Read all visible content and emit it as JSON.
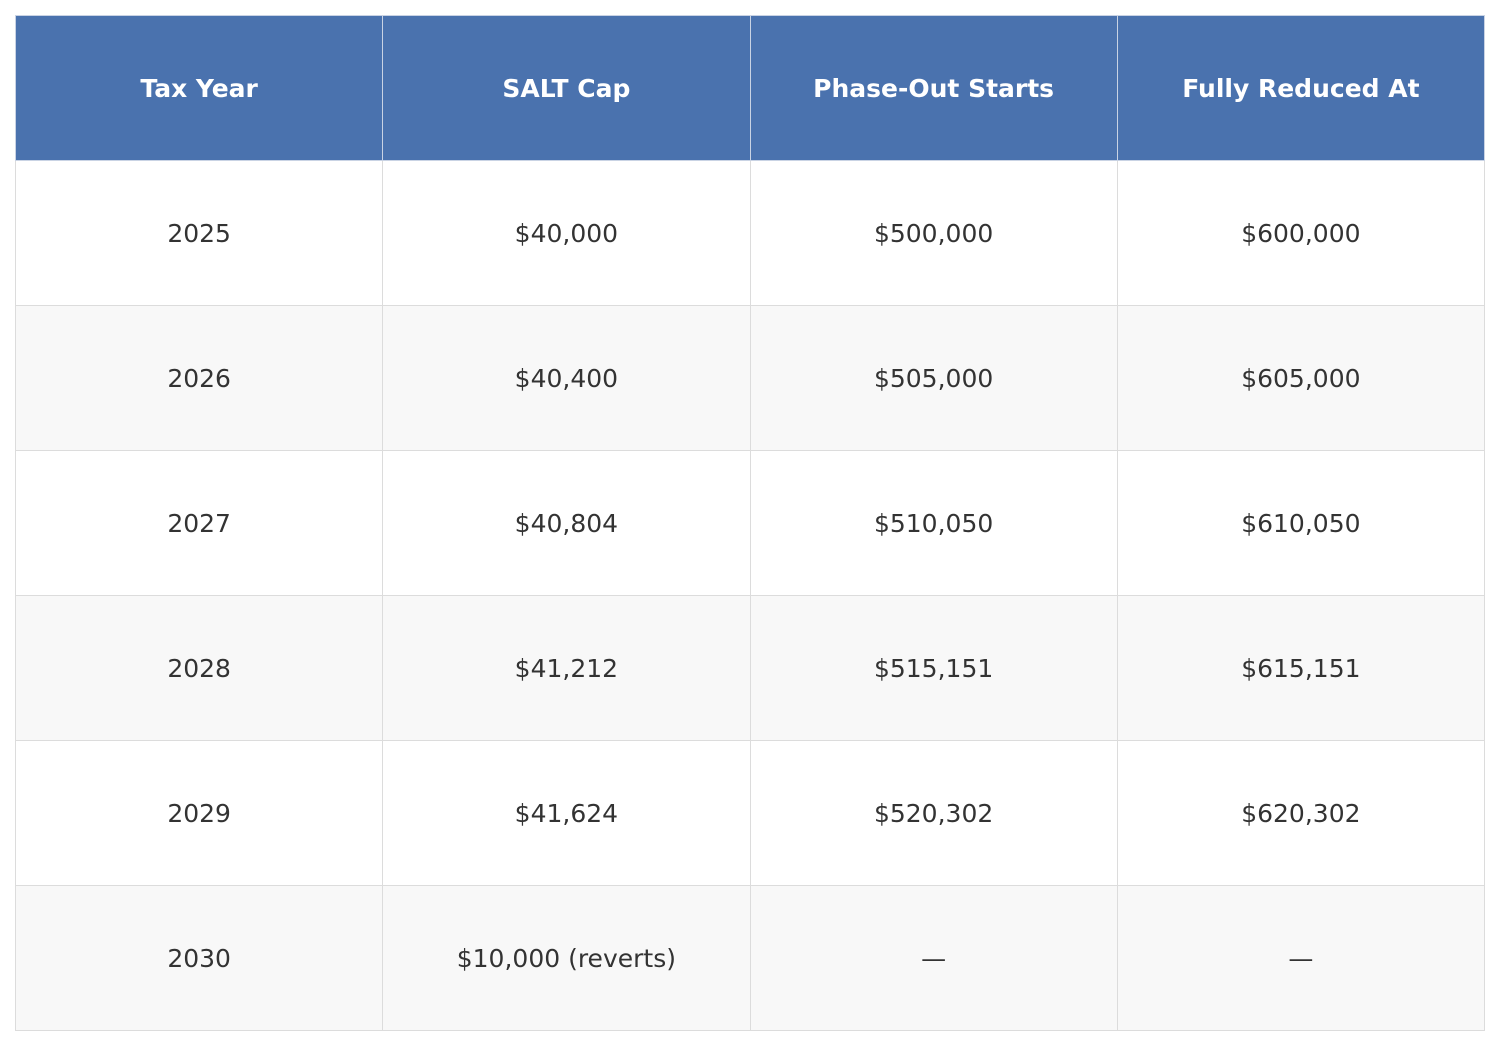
{
  "table": {
    "header": [
      "Tax Year",
      "SALT Cap",
      "Phase-Out Starts",
      "Fully Reduced At"
    ],
    "rows": [
      [
        "2025",
        "$40,000",
        "$500,000",
        "$600,000"
      ],
      [
        "2026",
        "$40,400",
        "$505,000",
        "$605,000"
      ],
      [
        "2027",
        "$40,804",
        "$510,050",
        "$610,050"
      ],
      [
        "2028",
        "$41,212",
        "$515,151",
        "$615,151"
      ],
      [
        "2029",
        "$41,624",
        "$520,302",
        "$620,302"
      ],
      [
        "2030",
        "$10,000 (reverts)",
        "—",
        "—"
      ]
    ]
  }
}
